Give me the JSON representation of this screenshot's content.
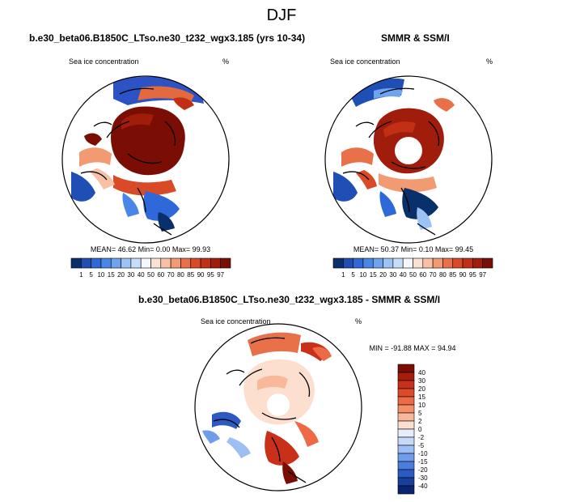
{
  "figure_title": "DJF",
  "chart_data": [
    {
      "type": "heatmap",
      "projection": "north-polar-stereographic",
      "title": "b.e30_beta06.B1850C_LTso.ne30_t232_wgx3.185 (yrs 10-34)",
      "left_label": "Sea ice concentration",
      "units": "%",
      "stats_text": "MEAN=  46.62  Min=   0.00  Max=  99.93",
      "stats": {
        "mean": 46.62,
        "min": 0.0,
        "max": 99.93
      },
      "colorbar_levels": [
        "1",
        "5",
        "10",
        "15",
        "20",
        "30",
        "40",
        "50",
        "60",
        "70",
        "80",
        "85",
        "90",
        "95",
        "97"
      ],
      "colorbar_colors": [
        "#08306b",
        "#1f4fb5",
        "#2f68d8",
        "#4a86e8",
        "#6ea3f0",
        "#9bc3f5",
        "#c6dcf8",
        "#f5f7fc",
        "#fbe0d4",
        "#f8c0a4",
        "#f29a72",
        "#e9714a",
        "#d94a27",
        "#c13015",
        "#a01c0b",
        "#7a0e05"
      ]
    },
    {
      "type": "heatmap",
      "projection": "north-polar-stereographic",
      "title": "SMMR & SSM/I",
      "left_label": "Sea ice concentration",
      "units": "%",
      "stats_text": "MEAN=  50.37  Min=   0.10  Max=  99.45",
      "stats": {
        "mean": 50.37,
        "min": 0.1,
        "max": 99.45
      },
      "colorbar_levels": [
        "1",
        "5",
        "10",
        "15",
        "20",
        "30",
        "40",
        "50",
        "60",
        "70",
        "80",
        "85",
        "90",
        "95",
        "97"
      ],
      "colorbar_colors": [
        "#08306b",
        "#1f4fb5",
        "#2f68d8",
        "#4a86e8",
        "#6ea3f0",
        "#9bc3f5",
        "#c6dcf8",
        "#f5f7fc",
        "#fbe0d4",
        "#f8c0a4",
        "#f29a72",
        "#e9714a",
        "#d94a27",
        "#c13015",
        "#a01c0b",
        "#7a0e05"
      ]
    },
    {
      "type": "heatmap",
      "projection": "north-polar-stereographic",
      "title": "b.e30_beta06.B1850C_LTso.ne30_t232_wgx3.185 - SMMR & SSM/I",
      "left_label": "Sea ice concentration",
      "units": "%",
      "stats_text": "MIN = -91.88 MAX =  94.94",
      "stats": {
        "min": -91.88,
        "max": 94.94
      },
      "colorbar_levels": [
        "40",
        "30",
        "20",
        "15",
        "10",
        "5",
        "2",
        "0",
        "-2",
        "-5",
        "-10",
        "-15",
        "-20",
        "-30",
        "-40"
      ],
      "colorbar_colors": [
        "#7a0e05",
        "#a51d0b",
        "#c8301a",
        "#dd4a2a",
        "#ec6a45",
        "#f58f68",
        "#f9b89a",
        "#fddfd0",
        "#e6eefb",
        "#c7d9f7",
        "#9dbff3",
        "#6f9de9",
        "#4a7ddc",
        "#2c5ac2",
        "#173f9c",
        "#0a2470"
      ]
    }
  ]
}
